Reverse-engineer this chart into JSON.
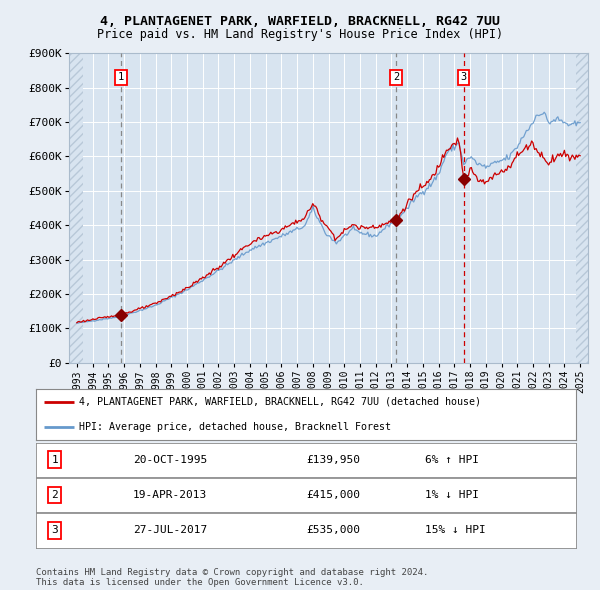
{
  "title1": "4, PLANTAGENET PARK, WARFIELD, BRACKNELL, RG42 7UU",
  "title2": "Price paid vs. HM Land Registry's House Price Index (HPI)",
  "background_color": "#e8eef5",
  "plot_bg_color": "#d8e4f0",
  "hatch_color": "#b8c8d8",
  "grid_color": "#ffffff",
  "red_line_color": "#cc0000",
  "blue_line_color": "#6699cc",
  "sale_marker_color": "#880000",
  "sale_points": [
    {
      "year": 1995.8,
      "price": 139950,
      "label": "1"
    },
    {
      "year": 2013.3,
      "price": 415000,
      "label": "2"
    },
    {
      "year": 2017.6,
      "price": 535000,
      "label": "3"
    }
  ],
  "vline_colors": [
    "#888888",
    "#888888",
    "#cc0000"
  ],
  "legend_entries": [
    "4, PLANTAGENET PARK, WARFIELD, BRACKNELL, RG42 7UU (detached house)",
    "HPI: Average price, detached house, Bracknell Forest"
  ],
  "table_rows": [
    {
      "num": "1",
      "date": "20-OCT-1995",
      "price": "£139,950",
      "hpi": "6% ↑ HPI"
    },
    {
      "num": "2",
      "date": "19-APR-2013",
      "price": "£415,000",
      "hpi": "1% ↓ HPI"
    },
    {
      "num": "3",
      "date": "27-JUL-2017",
      "price": "£535,000",
      "hpi": "15% ↓ HPI"
    }
  ],
  "footer": "Contains HM Land Registry data © Crown copyright and database right 2024.\nThis data is licensed under the Open Government Licence v3.0.",
  "ylim": [
    0,
    900000
  ],
  "yticks": [
    0,
    100000,
    200000,
    300000,
    400000,
    500000,
    600000,
    700000,
    800000,
    900000
  ],
  "ytick_labels": [
    "£0",
    "£100K",
    "£200K",
    "£300K",
    "£400K",
    "£500K",
    "£600K",
    "£700K",
    "£800K",
    "£900K"
  ],
  "xlim_start": 1992.5,
  "xlim_end": 2025.5,
  "xtick_years": [
    1993,
    1994,
    1995,
    1996,
    1997,
    1998,
    1999,
    2000,
    2001,
    2002,
    2003,
    2004,
    2005,
    2006,
    2007,
    2008,
    2009,
    2010,
    2011,
    2012,
    2013,
    2014,
    2015,
    2016,
    2017,
    2018,
    2019,
    2020,
    2021,
    2022,
    2023,
    2024,
    2025
  ]
}
